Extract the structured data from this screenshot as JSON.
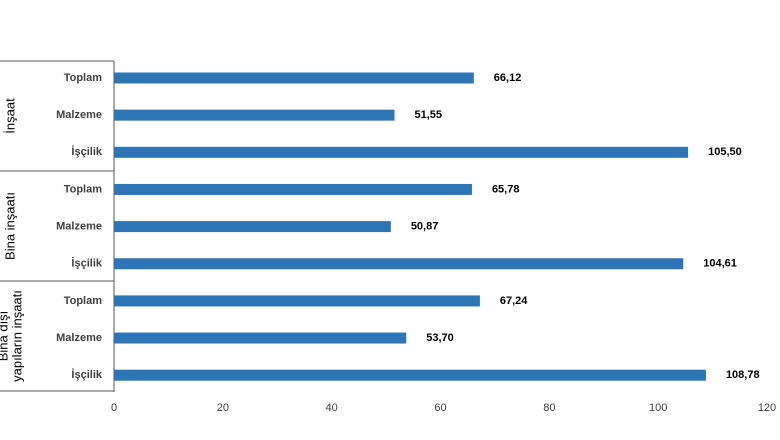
{
  "chart_data": {
    "type": "bar",
    "orientation": "horizontal",
    "groups": [
      {
        "name": "İnşaat",
        "name_lines": [
          "İnşaat"
        ],
        "items": [
          {
            "label": "Toplam",
            "value": 66.12,
            "display": "66,12"
          },
          {
            "label": "Malzeme",
            "value": 51.55,
            "display": "51,55"
          },
          {
            "label": "İşçilik",
            "value": 105.5,
            "display": "105,50"
          }
        ]
      },
      {
        "name": "Bina inşaatı",
        "name_lines": [
          "Bina inşaatı"
        ],
        "items": [
          {
            "label": "Toplam",
            "value": 65.78,
            "display": "65,78"
          },
          {
            "label": "Malzeme",
            "value": 50.87,
            "display": "50,87"
          },
          {
            "label": "İşçilik",
            "value": 104.61,
            "display": "104,61"
          }
        ]
      },
      {
        "name": "Bina dışı yapıların inşaatı",
        "name_lines": [
          "Bina dışı",
          "yapıların inşaatı"
        ],
        "items": [
          {
            "label": "Toplam",
            "value": 67.24,
            "display": "67,24"
          },
          {
            "label": "Malzeme",
            "value": 53.7,
            "display": "53,70"
          },
          {
            "label": "İşçilik",
            "value": 108.78,
            "display": "108,78"
          }
        ]
      }
    ],
    "xlim": [
      0,
      120
    ],
    "xticks": [
      "0",
      "20",
      "40",
      "60",
      "80",
      "100",
      "120"
    ],
    "bar_color": "#2e75b6",
    "grid": false,
    "legend": "none"
  }
}
